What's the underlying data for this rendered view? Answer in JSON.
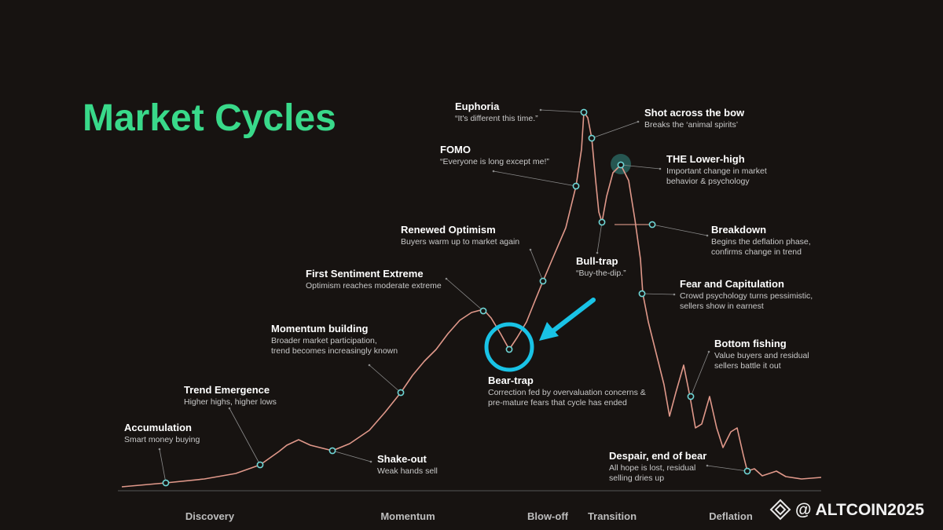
{
  "title": "Market Cycles",
  "annotations": [
    {
      "title": "Accumulation",
      "lines": [
        "Smart money buying"
      ]
    },
    {
      "title": "Trend Emergence",
      "lines": [
        "Higher highs, higher lows"
      ]
    },
    {
      "title": "Momentum building",
      "lines": [
        "Broader market participation,",
        "trend becomes increasingly known"
      ]
    },
    {
      "title": "First Sentiment Extreme",
      "lines": [
        "Optimism reaches moderate extreme"
      ]
    },
    {
      "title": "Renewed Optimism",
      "lines": [
        "Buyers warm up to market again"
      ]
    },
    {
      "title": "FOMO",
      "lines": [
        "“Everyone is long except me!”"
      ]
    },
    {
      "title": "Euphoria",
      "lines": [
        "“It's different this time.”"
      ]
    },
    {
      "title": "Shot across the bow",
      "lines": [
        "Breaks the ‘animal spirits’"
      ]
    },
    {
      "title": "THE Lower-high",
      "lines": [
        "Important change in market",
        "behavior & psychology"
      ]
    },
    {
      "title": "Bull-trap",
      "lines": [
        "“Buy-the-dip.”"
      ]
    },
    {
      "title": "Breakdown",
      "lines": [
        "Begins the deflation phase,",
        "confirms change in trend"
      ]
    },
    {
      "title": "Fear and Capitulation",
      "lines": [
        "Crowd psychology turns pessimistic,",
        "sellers show in earnest"
      ]
    },
    {
      "title": "Bottom fishing",
      "lines": [
        "Value buyers and residual",
        "sellers battle it out"
      ]
    },
    {
      "title": "Despair, end of bear",
      "lines": [
        "All hope is lost, residual",
        "selling dries up"
      ]
    },
    {
      "title": "Shake-out",
      "lines": [
        "Weak hands sell"
      ]
    },
    {
      "title": "Bear-trap",
      "lines": [
        "Correction fed by overvaluation concerns &",
        "pre-mature fears that cycle has ended"
      ]
    }
  ],
  "phases": [
    "Discovery",
    "Momentum",
    "Blow-off",
    "Transition",
    "Deflation"
  ],
  "watermark": "@ ALTCOIN2025"
}
